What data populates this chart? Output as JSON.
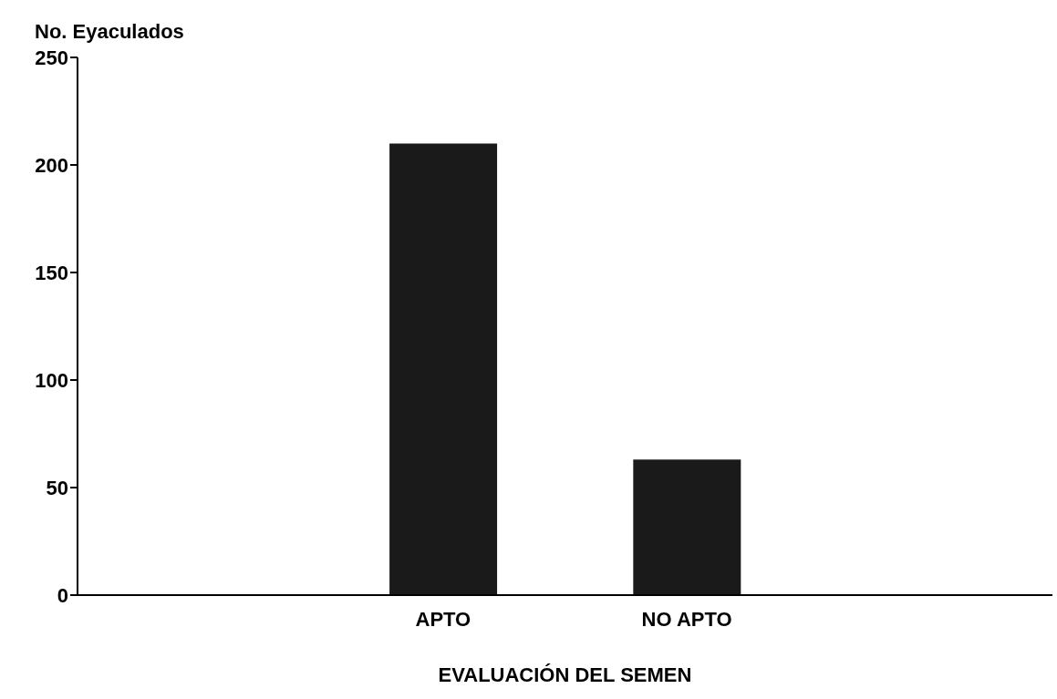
{
  "chart_data": {
    "type": "bar",
    "ylabel": "No. Eyaculados",
    "xlabel": "EVALUACIÓN DEL SEMEN",
    "categories": [
      null,
      "APTO",
      "NO APTO",
      null
    ],
    "values": [
      null,
      210,
      63,
      null
    ],
    "color": "#1a1a1a",
    "ylim": [
      0,
      250
    ],
    "yticks": [
      0,
      50,
      100,
      150,
      200,
      250
    ],
    "grid": false
  }
}
